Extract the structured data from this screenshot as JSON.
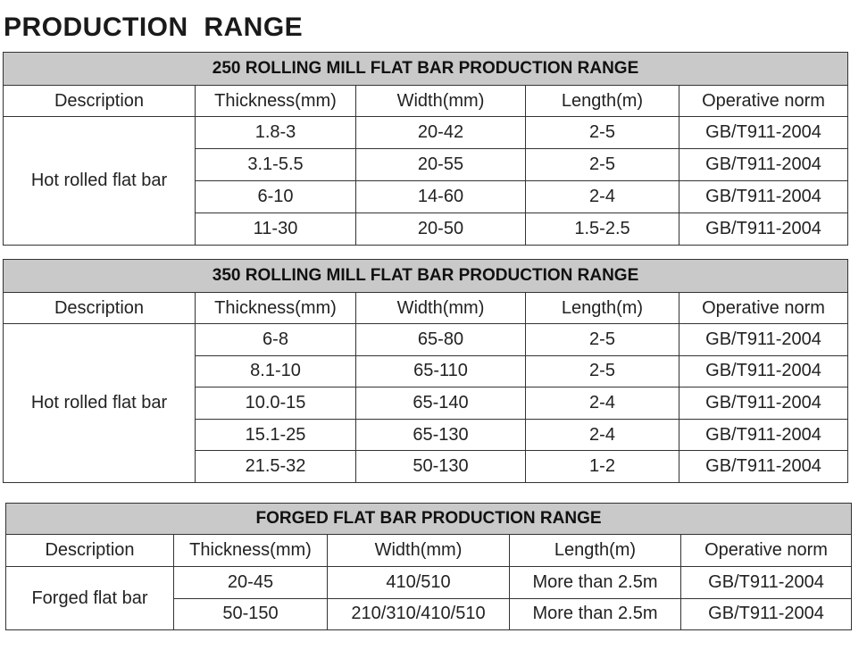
{
  "page": {
    "title": "PRODUCTION  RANGE"
  },
  "tables": [
    {
      "caption": "250 ROLLING MILL FLAT BAR PRODUCTION RANGE",
      "headers": [
        "Description",
        "Thickness(mm)",
        "Width(mm)",
        "Length(m)",
        "Operative norm"
      ],
      "description": "Hot rolled flat bar",
      "rows": [
        [
          "1.8-3",
          "20-42",
          "2-5",
          "GB/T911-2004"
        ],
        [
          "3.1-5.5",
          "20-55",
          "2-5",
          "GB/T911-2004"
        ],
        [
          "6-10",
          "14-60",
          "2-4",
          "GB/T911-2004"
        ],
        [
          "11-30",
          "20-50",
          "1.5-2.5",
          "GB/T911-2004"
        ]
      ]
    },
    {
      "caption": "350 ROLLING MILL FLAT BAR PRODUCTION RANGE",
      "headers": [
        "Description",
        "Thickness(mm)",
        "Width(mm)",
        "Length(m)",
        "Operative norm"
      ],
      "description": "Hot rolled flat bar",
      "rows": [
        [
          "6-8",
          "65-80",
          "2-5",
          "GB/T911-2004"
        ],
        [
          "8.1-10",
          "65-110",
          "2-5",
          "GB/T911-2004"
        ],
        [
          "10.0-15",
          "65-140",
          "2-4",
          "GB/T911-2004"
        ],
        [
          "15.1-25",
          "65-130",
          "2-4",
          "GB/T911-2004"
        ],
        [
          "21.5-32",
          "50-130",
          "1-2",
          "GB/T911-2004"
        ]
      ]
    },
    {
      "caption": "FORGED FLAT BAR PRODUCTION RANGE",
      "headers": [
        "Description",
        "Thickness(mm)",
        "Width(mm)",
        "Length(m)",
        "Operative norm"
      ],
      "description": "Forged flat bar",
      "rows": [
        [
          "20-45",
          "410/510",
          "More than 2.5m",
          "GB/T911-2004"
        ],
        [
          "50-150",
          "210/310/410/510",
          "More than 2.5m",
          "GB/T911-2004"
        ]
      ]
    }
  ]
}
